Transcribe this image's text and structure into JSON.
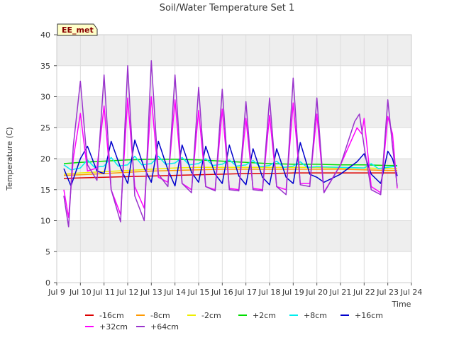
{
  "chart_data": {
    "type": "line",
    "title": "Soil/Water Temperature Set 1",
    "xlabel": "Time",
    "ylabel": "Temperature (C)",
    "site_label": "EE_met",
    "xlim": [
      9,
      24
    ],
    "ylim": [
      0,
      40
    ],
    "x_ticks": [
      9,
      10,
      11,
      12,
      13,
      14,
      15,
      16,
      17,
      18,
      19,
      20,
      21,
      22,
      23,
      24
    ],
    "x_tick_labels": [
      "Jul 9",
      "Jul 10",
      "Jul 11",
      "Jul 12",
      "Jul 13",
      "Jul 14",
      "Jul 15",
      "Jul 16",
      "Jul 17",
      "Jul 18",
      "Jul 19",
      "Jul 20",
      "Jul 21",
      "Jul 22",
      "Jul 23",
      "Jul 24"
    ],
    "y_ticks": [
      0,
      5,
      10,
      15,
      20,
      25,
      30,
      35,
      40
    ],
    "y_tick_labels": [
      "0",
      "5",
      "10",
      "15",
      "20",
      "25",
      "30",
      "35",
      "40"
    ],
    "grid": true,
    "background_bands": "alternating light grey",
    "legend_position": "bottom",
    "series": [
      {
        "name": "-16cm",
        "color": "#dd0000",
        "x": [
          9.3,
          10.0,
          11.0,
          12.0,
          13.0,
          14.0,
          15.0,
          16.0,
          17.0,
          18.0,
          19.0,
          20.0,
          21.0,
          22.0,
          23.0,
          23.4
        ],
        "y": [
          16.8,
          16.9,
          17.0,
          17.1,
          17.2,
          17.3,
          17.4,
          17.5,
          17.6,
          17.6,
          17.7,
          17.7,
          17.7,
          17.7,
          17.7,
          17.7
        ]
      },
      {
        "name": "-8cm",
        "color": "#ff9900",
        "x": [
          9.3,
          10.0,
          11.0,
          12.0,
          13.0,
          14.0,
          15.0,
          16.0,
          17.0,
          18.0,
          19.0,
          20.0,
          21.0,
          22.0,
          23.0,
          23.4
        ],
        "y": [
          17.3,
          17.4,
          17.6,
          17.8,
          18.0,
          18.1,
          18.2,
          18.3,
          18.3,
          18.3,
          18.3,
          18.3,
          18.3,
          18.2,
          18.1,
          18.1
        ]
      },
      {
        "name": "-2cm",
        "color": "#eeee00",
        "x": [
          9.3,
          10.0,
          11.0,
          12.0,
          13.0,
          14.0,
          15.0,
          16.0,
          17.0,
          18.0,
          19.0,
          20.0,
          21.0,
          22.0,
          23.0,
          23.4
        ],
        "y": [
          17.5,
          17.7,
          17.9,
          18.1,
          18.3,
          18.5,
          18.6,
          18.6,
          18.6,
          18.6,
          18.6,
          18.6,
          18.5,
          18.5,
          18.4,
          18.4
        ]
      },
      {
        "name": "+2cm",
        "color": "#00dd00",
        "x": [
          9.3,
          10.0,
          11.0,
          12.0,
          13.0,
          14.0,
          15.0,
          16.0,
          17.0,
          18.0,
          19.0,
          20.0,
          21.0,
          22.0,
          23.0,
          23.4
        ],
        "y": [
          19.2,
          19.4,
          19.6,
          19.8,
          19.9,
          19.9,
          19.8,
          19.6,
          19.4,
          19.2,
          19.1,
          19.1,
          19.0,
          19.0,
          18.9,
          18.9
        ]
      },
      {
        "name": "+8cm",
        "color": "#00eeee",
        "x": [
          9.3,
          9.6,
          10.0,
          10.3,
          10.6,
          11.0,
          11.3,
          11.6,
          12.0,
          12.3,
          12.6,
          13.0,
          13.3,
          13.6,
          14.0,
          14.3,
          14.6,
          15.0,
          15.3,
          15.6,
          16.0,
          16.3,
          16.6,
          17.0,
          17.3,
          17.6,
          18.0,
          18.3,
          18.6,
          19.0,
          19.3,
          19.6,
          20.0,
          21.0,
          22.0,
          22.3,
          22.6,
          23.0,
          23.4
        ],
        "y": [
          19.0,
          18.2,
          18.5,
          19.8,
          18.6,
          18.8,
          20.2,
          18.8,
          19.0,
          20.4,
          19.0,
          19.2,
          20.4,
          19.1,
          19.3,
          20.2,
          19.0,
          19.2,
          20.0,
          18.9,
          19.1,
          19.8,
          18.8,
          19.0,
          19.7,
          18.7,
          18.9,
          19.6,
          18.6,
          18.8,
          19.5,
          18.6,
          18.7,
          18.6,
          18.5,
          19.2,
          18.4,
          18.6,
          18.8
        ]
      },
      {
        "name": "+16cm",
        "color": "#0000cc",
        "x": [
          9.3,
          9.6,
          10.0,
          10.3,
          10.7,
          11.0,
          11.3,
          11.7,
          12.0,
          12.3,
          12.7,
          13.0,
          13.3,
          13.7,
          14.0,
          14.3,
          14.7,
          15.0,
          15.3,
          15.7,
          16.0,
          16.3,
          16.7,
          17.0,
          17.3,
          17.7,
          18.0,
          18.3,
          18.7,
          19.0,
          19.3,
          19.7,
          20.0,
          20.3,
          21.0,
          21.7,
          22.0,
          22.3,
          22.7,
          23.0,
          23.2,
          23.4
        ],
        "y": [
          18.4,
          15.6,
          20.0,
          22.0,
          18.0,
          17.6,
          22.8,
          18.5,
          16.0,
          23.0,
          18.5,
          16.2,
          22.8,
          18.2,
          15.6,
          22.2,
          17.8,
          16.2,
          22.0,
          17.5,
          16.0,
          22.2,
          17.2,
          15.8,
          21.6,
          17.0,
          15.8,
          21.6,
          17.0,
          16.0,
          22.6,
          17.5,
          17.0,
          16.2,
          17.5,
          19.5,
          20.8,
          17.5,
          16.0,
          21.2,
          20.0,
          17.2
        ]
      },
      {
        "name": "+32cm",
        "color": "#ff00ff",
        "x": [
          9.3,
          9.5,
          9.7,
          10.0,
          10.3,
          10.7,
          11.0,
          11.3,
          11.7,
          12.0,
          12.3,
          12.7,
          13.0,
          13.3,
          13.7,
          14.0,
          14.3,
          14.7,
          15.0,
          15.3,
          15.7,
          16.0,
          16.3,
          16.7,
          17.0,
          17.3,
          17.7,
          18.0,
          18.3,
          18.7,
          19.0,
          19.3,
          19.7,
          20.0,
          20.3,
          21.0,
          21.7,
          21.9,
          22.0,
          22.3,
          22.7,
          23.0,
          23.2,
          23.4
        ],
        "y": [
          15.0,
          10.5,
          20.0,
          27.3,
          18.0,
          18.5,
          28.5,
          15.0,
          11.0,
          29.8,
          15.5,
          12.0,
          30.0,
          17.0,
          16.2,
          29.5,
          16.0,
          15.0,
          27.8,
          15.5,
          15.0,
          28.0,
          15.2,
          15.0,
          26.5,
          15.2,
          15.0,
          27.0,
          15.5,
          15.0,
          29.0,
          16.0,
          16.0,
          27.2,
          14.6,
          19.0,
          25.0,
          24.0,
          26.5,
          15.5,
          14.5,
          26.8,
          24.0,
          15.2
        ]
      },
      {
        "name": "+64cm",
        "color": "#9933cc",
        "x": [
          9.3,
          9.5,
          9.7,
          10.0,
          10.3,
          10.7,
          11.0,
          11.3,
          11.7,
          12.0,
          12.3,
          12.7,
          13.0,
          13.3,
          13.7,
          14.0,
          14.3,
          14.7,
          15.0,
          15.3,
          15.7,
          16.0,
          16.3,
          16.7,
          17.0,
          17.3,
          17.7,
          18.0,
          18.3,
          18.7,
          19.0,
          19.3,
          19.7,
          20.0,
          20.3,
          21.0,
          21.6,
          21.8,
          22.0,
          22.3,
          22.7,
          23.0,
          23.2,
          23.4
        ],
        "y": [
          14.0,
          9.0,
          22.0,
          32.5,
          19.0,
          16.5,
          33.5,
          15.0,
          9.8,
          35.0,
          14.0,
          10.0,
          35.8,
          17.5,
          15.5,
          33.5,
          16.0,
          14.5,
          31.5,
          15.5,
          14.8,
          31.2,
          15.0,
          14.8,
          29.2,
          15.0,
          14.8,
          29.8,
          15.5,
          14.2,
          33.0,
          15.8,
          15.5,
          29.8,
          14.5,
          19.0,
          26.0,
          27.2,
          22.0,
          15.0,
          14.2,
          29.5,
          22.0,
          15.5
        ]
      }
    ]
  }
}
